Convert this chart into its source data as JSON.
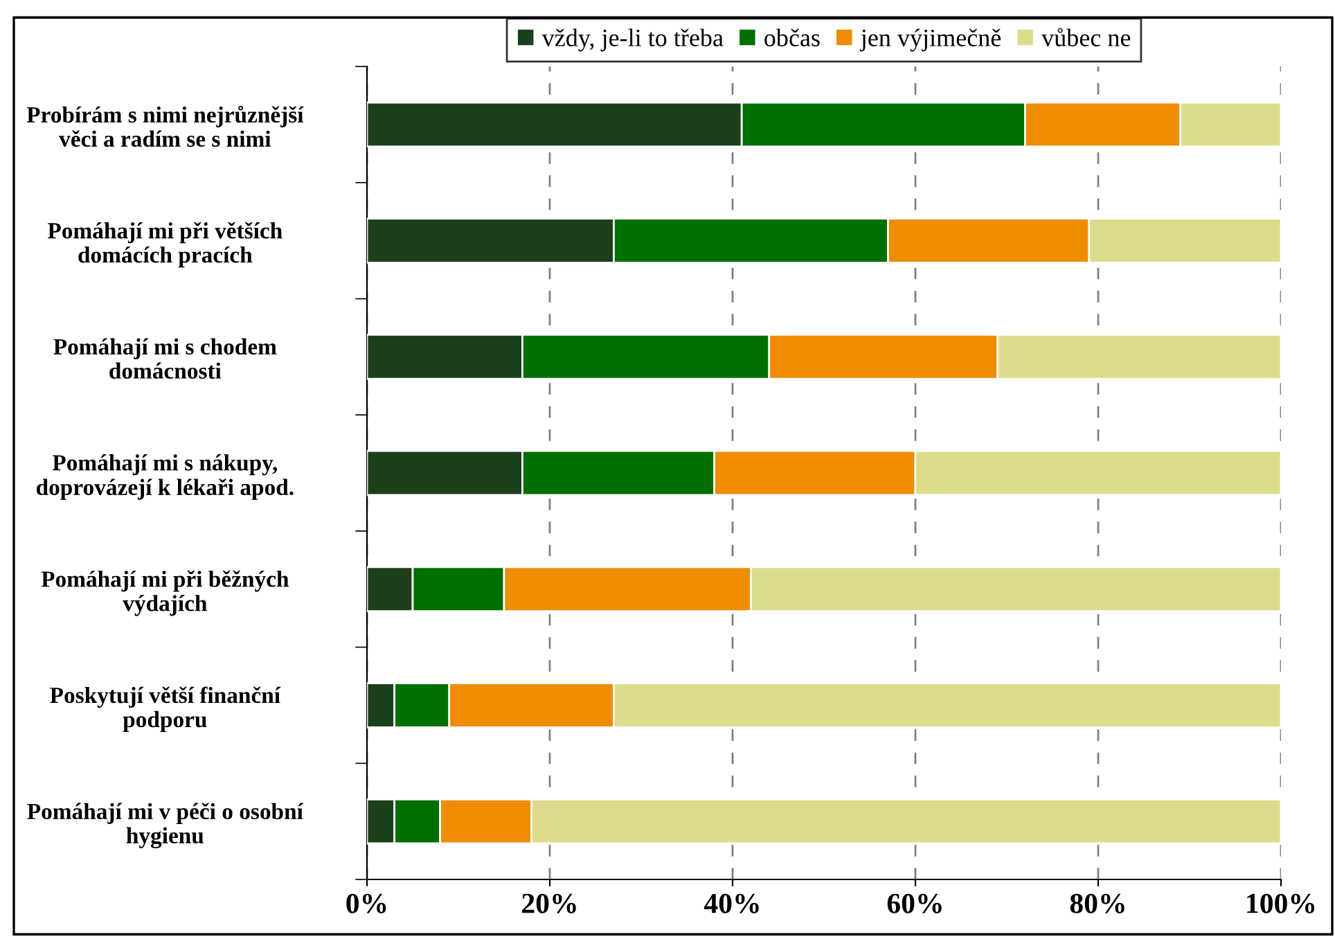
{
  "chart_data": {
    "type": "bar",
    "orientation": "horizontal",
    "stacked": true,
    "categories": [
      "Probírám s nimi nejrůznější\nvěci a radím se s nimi",
      "Pomáhají mi při větších\ndomácích pracích",
      "Pomáhají mi s chodem\ndomácnosti",
      "Pomáhají mi s nákupy,\ndoprovázejí k lékaři apod.",
      "Pomáhají mi při běžných\nvýdajích",
      "Poskytují větší finanční\npodporu",
      "Pomáhají mi v péči o osobní\nhygienu"
    ],
    "series": [
      {
        "name": "vždy, je-li to třeba",
        "color": "#1b401b",
        "values": [
          41,
          27,
          17,
          17,
          5,
          3,
          3
        ]
      },
      {
        "name": "občas",
        "color": "#007000",
        "values": [
          31,
          30,
          27,
          21,
          10,
          6,
          5
        ]
      },
      {
        "name": "jen výjimečně",
        "color": "#ef8c00",
        "values": [
          17,
          22,
          25,
          22,
          27,
          18,
          10
        ]
      },
      {
        "name": "vůbec ne",
        "color": "#dcdc8c",
        "values": [
          11,
          21,
          31,
          40,
          58,
          73,
          82
        ]
      }
    ],
    "xlim": [
      0,
      100
    ],
    "xticks": [
      {
        "value": 0,
        "label": "0%"
      },
      {
        "value": 20,
        "label": "20%"
      },
      {
        "value": 40,
        "label": "40%"
      },
      {
        "value": 60,
        "label": "60%"
      },
      {
        "value": 80,
        "label": "80%"
      },
      {
        "value": 100,
        "label": "100%"
      }
    ],
    "grid": "x",
    "legend": "top"
  }
}
